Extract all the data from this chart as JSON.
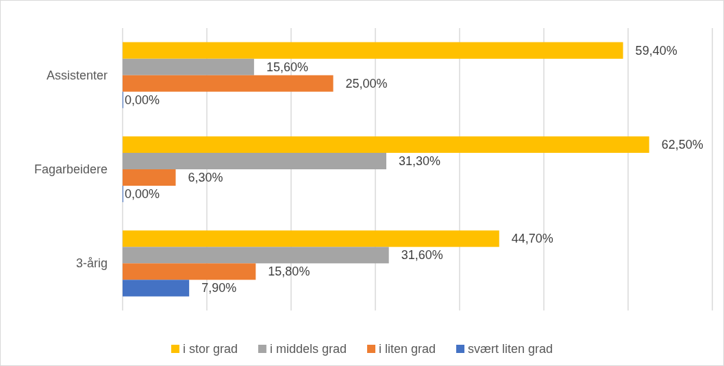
{
  "chart_data": {
    "type": "bar",
    "orientation": "horizontal",
    "categories": [
      "Assistenter",
      "Fagarbeidere",
      "3-årig"
    ],
    "series": [
      {
        "name": "i stor grad",
        "color": "#ffc000",
        "values": [
          59.4,
          62.5,
          44.7
        ],
        "value_labels": [
          "59,40%",
          "62,50%",
          "44,70%"
        ]
      },
      {
        "name": "i middels grad",
        "color": "#a5a5a5",
        "values": [
          15.6,
          31.3,
          31.6
        ],
        "value_labels": [
          "15,60%",
          "31,30%",
          "31,60%"
        ]
      },
      {
        "name": "i liten grad",
        "color": "#ed7d31",
        "values": [
          25.0,
          6.3,
          15.8
        ],
        "value_labels": [
          "25,00%",
          "6,30%",
          "15,80%"
        ]
      },
      {
        "name": "svært liten grad",
        "color": "#4472c4",
        "values": [
          0.0,
          0.0,
          7.9
        ],
        "value_labels": [
          "0,00%",
          "0,00%",
          "7,90%"
        ]
      }
    ],
    "xlim": [
      0,
      70
    ],
    "xticks": [
      {
        "value": 0,
        "label": null
      },
      {
        "value": 10,
        "label": null
      },
      {
        "value": 20,
        "label": null
      },
      {
        "value": 30,
        "label": null
      },
      {
        "value": 40,
        "label": null
      },
      {
        "value": 50,
        "label": null
      },
      {
        "value": 60,
        "label": null
      },
      {
        "value": 70,
        "label": null
      }
    ],
    "grid": "x",
    "legend": "bottom",
    "tick_labels": "y"
  }
}
